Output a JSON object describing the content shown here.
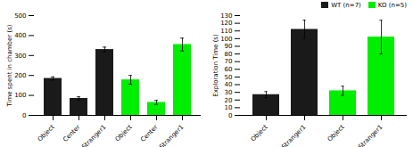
{
  "chart_data": [
    {
      "type": "bar",
      "ylabel": "Time spent in chamber (s)",
      "categories": [
        "Object",
        "Center",
        "Stranger1",
        "Object",
        "Center",
        "Stranger1"
      ],
      "values": [
        185,
        85,
        330,
        178,
        65,
        355
      ],
      "errors": [
        8,
        8,
        12,
        22,
        10,
        32
      ],
      "colors": [
        "#1a1a1a",
        "#1a1a1a",
        "#1a1a1a",
        "#00ee00",
        "#00ee00",
        "#00ee00"
      ],
      "ylim": [
        0,
        500
      ],
      "yticks": [
        0,
        100,
        200,
        300,
        400,
        500
      ]
    },
    {
      "type": "bar",
      "ylabel": "Exploration Time (s)",
      "categories": [
        "Object",
        "Stranger1",
        "Object",
        "Stranger1"
      ],
      "series": [
        {
          "name": "WT (n=7)",
          "color": "#1a1a1a",
          "values": [
            27,
            112,
            null,
            null
          ],
          "errors": [
            4,
            12,
            null,
            null
          ]
        },
        {
          "name": "KO (n=5)",
          "color": "#00ee00",
          "values": [
            null,
            null,
            32,
            102
          ],
          "errors": [
            null,
            null,
            6,
            22
          ]
        }
      ],
      "ylim": [
        0,
        130
      ],
      "yticks": [
        0,
        10,
        20,
        30,
        40,
        50,
        60,
        70,
        80,
        90,
        100,
        110,
        120,
        130
      ],
      "legend": "upper right"
    }
  ]
}
